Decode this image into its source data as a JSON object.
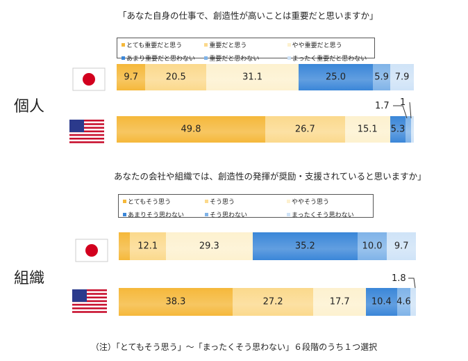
{
  "colors": [
    "#f5b83a",
    "#fbd98c",
    "#fdf1cf",
    "#3a86d8",
    "#7fb3e8",
    "#cfe3f7"
  ],
  "groups": [
    {
      "label": "個人",
      "question": "「あなた自身の仕事で、創造性が高いことは重要だと思いますか」",
      "legend": [
        "とても重要だと思う",
        "重要だと思う",
        "やや重要だと思う",
        "あまり重要だと思わない",
        "重要だと思わない",
        "まったく重要だと思わない"
      ],
      "callouts": [
        "1.7",
        "1"
      ]
    },
    {
      "label": "組織",
      "question": "あなたの会社や組織では、創造性の発揮が奨励・支援されていると思いますか」",
      "legend": [
        "とてもそう思う",
        "そう思う",
        "ややそう思う",
        "あまりそう思わない",
        "そう思わない",
        "まったくそう思わない"
      ],
      "callouts": [
        "1.8"
      ]
    }
  ],
  "chart_data": {
    "type": "bar",
    "orientation": "horizontal-stacked-100",
    "charts": [
      {
        "title": "「あなた自身の仕事で、創造性が高いことは重要だと思いますか」",
        "series": [
          "とても重要だと思う",
          "重要だと思う",
          "やや重要だと思う",
          "あまり重要だと思わない",
          "重要だと思わない",
          "まったく重要だと思わない"
        ],
        "rows": [
          {
            "country": "Japan",
            "values": [
              9.7,
              20.5,
              31.1,
              25.0,
              5.9,
              7.9
            ]
          },
          {
            "country": "USA",
            "values": [
              49.8,
              26.7,
              15.1,
              5.3,
              1.7,
              1
            ]
          }
        ]
      },
      {
        "title": "あなたの会社や組織では、創造性の発揮が奨励・支援されていると思いますか」",
        "series": [
          "とてもそう思う",
          "そう思う",
          "ややそう思う",
          "あまりそう思わない",
          "そう思わない",
          "まったくそう思わない"
        ],
        "rows": [
          {
            "country": "Japan",
            "values": [
              3.7,
              12.1,
              29.3,
              35.2,
              10.0,
              9.7
            ]
          },
          {
            "country": "USA",
            "values": [
              38.3,
              27.2,
              17.7,
              10.4,
              4.6,
              1.8
            ]
          }
        ]
      }
    ],
    "xlim": [
      0,
      100
    ],
    "legend": "top"
  },
  "note": "（注）「とてもそう思う」～「まったくそう思わない」６段階のうち１つ選択"
}
